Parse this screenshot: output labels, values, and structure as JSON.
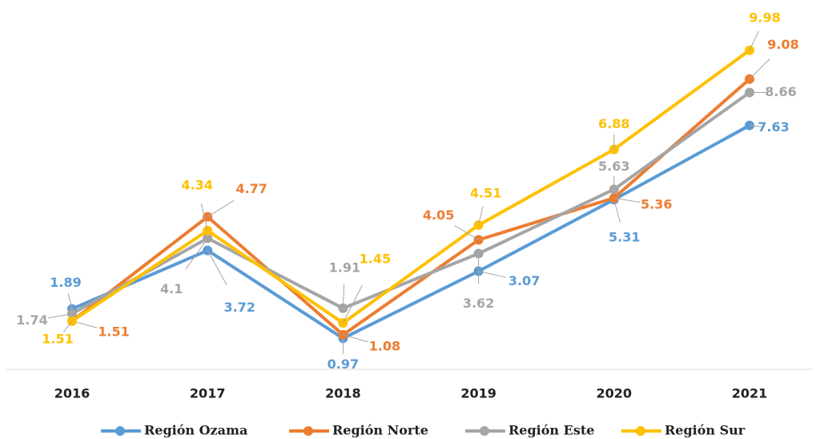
{
  "chart_data": {
    "type": "line",
    "categories": [
      "2016",
      "2017",
      "2018",
      "2019",
      "2020",
      "2021"
    ],
    "series": [
      {
        "name": "Región Ozama",
        "color": "#5b9bd5",
        "values": [
          1.89,
          3.72,
          0.97,
          3.07,
          5.31,
          7.63
        ]
      },
      {
        "name": "Región Norte",
        "color": "#ed7d31",
        "values": [
          1.51,
          4.77,
          1.08,
          4.05,
          5.36,
          9.08
        ]
      },
      {
        "name": "Región Este",
        "color": "#a5a5a5",
        "values": [
          1.74,
          4.1,
          1.91,
          3.62,
          5.63,
          8.66
        ]
      },
      {
        "name": "Región Sur",
        "color": "#ffc000",
        "values": [
          1.51,
          4.34,
          1.45,
          4.51,
          6.88,
          9.98
        ]
      }
    ],
    "ylim": [
      0,
      10
    ],
    "legend": "bottom"
  }
}
